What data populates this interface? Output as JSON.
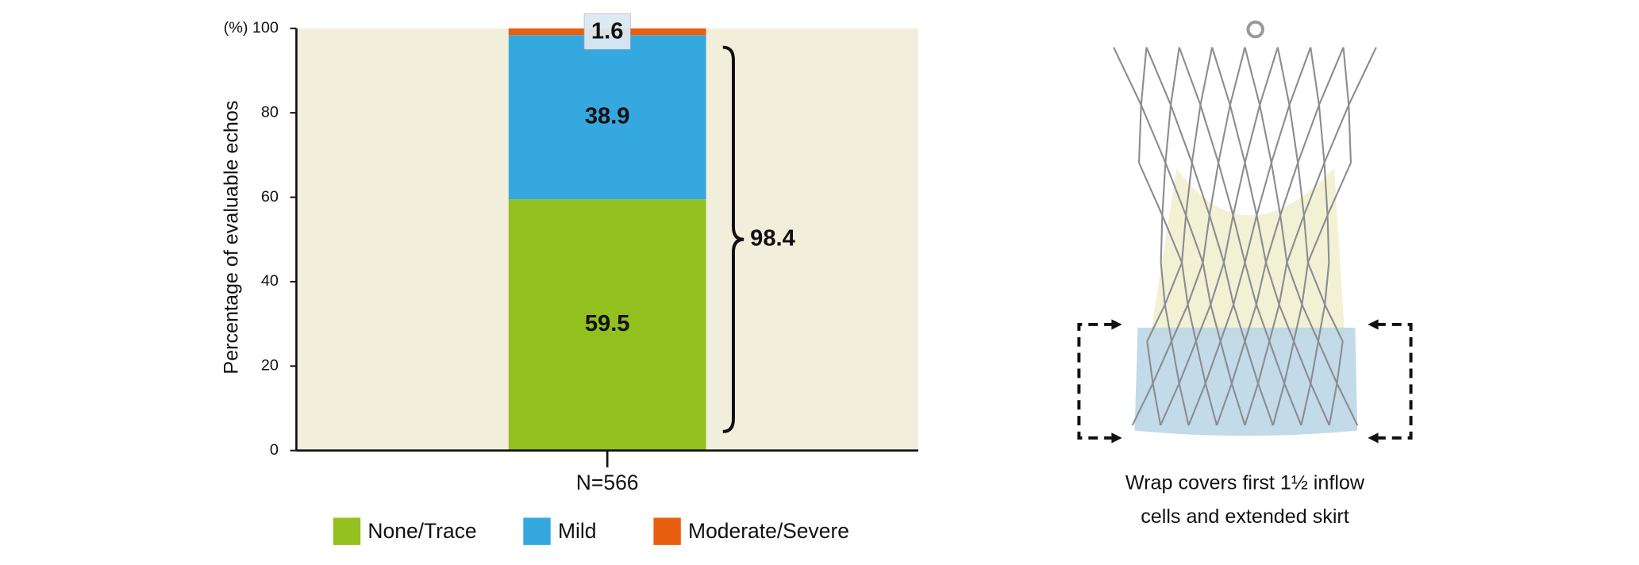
{
  "chart_data": {
    "type": "stacked-bar",
    "y_unit": "(%)",
    "ylabel": "Percentage of evaluable echos",
    "categories": [
      "N=566"
    ],
    "series": [
      {
        "name": "None/Trace",
        "color": "#93c01f",
        "values": [
          59.5
        ]
      },
      {
        "name": "Mild",
        "color": "#35a8e0",
        "values": [
          38.9
        ]
      },
      {
        "name": "Moderate/Severe",
        "color": "#e8600f",
        "values": [
          1.6
        ]
      }
    ],
    "annotation": "98.4",
    "ylim": [
      0,
      100
    ],
    "yticks": [
      0,
      20,
      40,
      60,
      80,
      100
    ],
    "background": "#f2eedc"
  },
  "figure": {
    "caption": [
      "Wrap covers first 1½ inflow",
      "cells and extended skirt"
    ]
  }
}
